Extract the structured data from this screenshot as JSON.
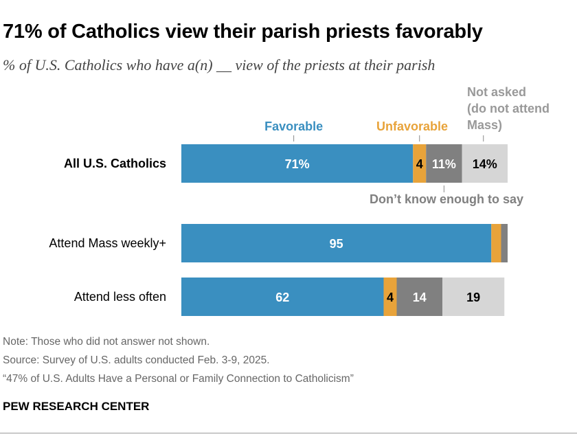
{
  "title": "71% of Catholics view their parish priests favorably",
  "subtitle": "% of U.S. Catholics who have a(n) __ view of the priests at their parish",
  "chart_data": {
    "type": "bar",
    "orientation": "horizontal",
    "stacked": true,
    "categories": [
      "All U.S. Catholics",
      "Attend Mass weekly+",
      "Attend less often"
    ],
    "series": [
      {
        "name": "Favorable",
        "color": "#3a8fc0",
        "values": [
          71,
          95,
          62
        ],
        "labels": [
          "71%",
          "95",
          "62"
        ]
      },
      {
        "name": "Unfavorable",
        "color": "#e8a33a",
        "values": [
          4,
          3,
          4
        ],
        "labels": [
          "4",
          "",
          "4"
        ]
      },
      {
        "name": "Don’t know enough to say",
        "color": "#808080",
        "values": [
          11,
          2,
          14
        ],
        "labels": [
          "11%",
          "",
          "14"
        ]
      },
      {
        "name": "Not asked (do not attend Mass)",
        "color": "#d6d6d6",
        "values": [
          14,
          0,
          19
        ],
        "labels": [
          "14%",
          "",
          "19"
        ]
      }
    ],
    "legend": {
      "favorable": "Favorable",
      "unfavorable": "Unfavorable",
      "not_asked": [
        "Not asked",
        "(do not attend",
        "Mass)"
      ],
      "dont_know": "Don’t know enough to say"
    },
    "xlim": [
      0,
      100
    ]
  },
  "notes": {
    "note": "Note: Those who did not answer not shown.",
    "source": "Source: Survey of U.S. adults conducted Feb. 3-9, 2025.",
    "report": "“47% of U.S. Adults Have a Personal or Family Connection to Catholicism”"
  },
  "brand": "PEW RESEARCH CENTER"
}
